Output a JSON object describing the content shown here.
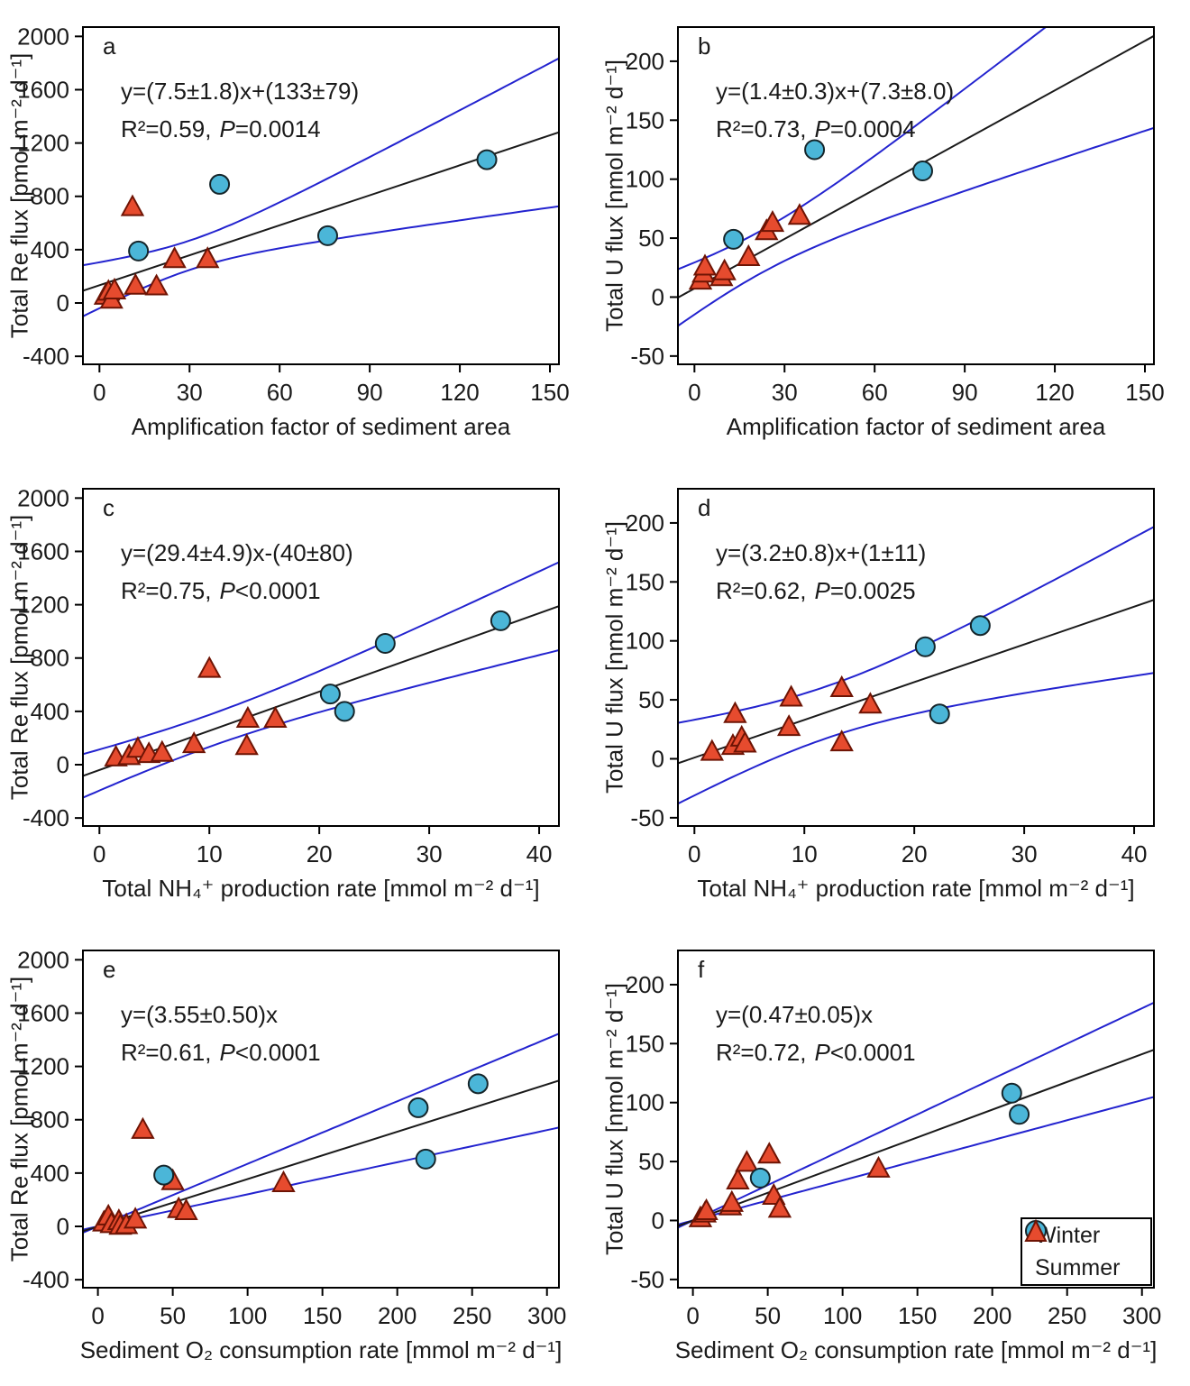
{
  "colors": {
    "winter_fill": "#4bb6d8",
    "winter_stroke": "#15252a",
    "summer_fill": "#e64b2e",
    "summer_stroke": "#6e1404",
    "fit_line": "#1a1a1a",
    "ci_line": "#2323cf",
    "axis": "#000000",
    "background": "#ffffff"
  },
  "legend": {
    "items": [
      {
        "label": "Winter",
        "marker": "circle"
      },
      {
        "label": "Summer",
        "marker": "triangle"
      }
    ],
    "position": "bottom-right of panel f"
  },
  "chart_data": [
    {
      "panel_label": "a",
      "type": "scatter",
      "xlabel": "Amplification factor of sediment area",
      "ylabel": "Total Re flux [pmol m⁻² d⁻¹]",
      "xlim": [
        -5.5,
        153
      ],
      "ylim": [
        -460,
        2070
      ],
      "xticks": [
        0,
        30,
        60,
        90,
        120,
        150
      ],
      "yticks": [
        -400,
        0,
        400,
        800,
        1200,
        1600,
        2000
      ],
      "equation": "y=(7.5±1.8)x+(133±79)",
      "r2_part": "R²=0.59,",
      "p_italic": "P",
      "p_rest": "=0.0014",
      "fit": {
        "slope": 7.5,
        "intercept": 133
      },
      "ci": {
        "x_center": 30,
        "half_width_center": 110,
        "half_width_edge": 555
      },
      "series": [
        {
          "name": "Winter",
          "marker": "circle",
          "points": [
            [
              13,
              390
            ],
            [
              40,
              890
            ],
            [
              76,
              505
            ],
            [
              129,
              1075
            ]
          ]
        },
        {
          "name": "Summer",
          "marker": "triangle",
          "points": [
            [
              2,
              55
            ],
            [
              3,
              85
            ],
            [
              4,
              25
            ],
            [
              5,
              95
            ],
            [
              11,
              720
            ],
            [
              12,
              130
            ],
            [
              19,
              125
            ],
            [
              25,
              330
            ],
            [
              36,
              330
            ]
          ]
        }
      ]
    },
    {
      "panel_label": "b",
      "type": "scatter",
      "xlabel": "Amplification factor of sediment area",
      "ylabel": "Total U flux [nmol m⁻² d⁻¹]",
      "xlim": [
        -5.5,
        153
      ],
      "ylim": [
        -57,
        229
      ],
      "xticks": [
        0,
        30,
        60,
        90,
        120,
        150
      ],
      "yticks": [
        -50,
        0,
        50,
        100,
        150,
        200
      ],
      "equation": "y=(1.4±0.3)x+(7.3±8.0)",
      "r2_part": "R²=0.73,",
      "p_italic": "P",
      "p_rest": "=0.0004",
      "fit": {
        "slope": 1.4,
        "intercept": 7.3
      },
      "ci": {
        "x_center": 22,
        "half_width_center": 18,
        "half_width_edge": 78
      },
      "series": [
        {
          "name": "Winter",
          "marker": "circle",
          "points": [
            [
              13,
              49
            ],
            [
              40,
              125
            ],
            [
              76,
              107
            ]
          ]
        },
        {
          "name": "Summer",
          "marker": "triangle",
          "points": [
            [
              2,
              14
            ],
            [
              3,
              20
            ],
            [
              3.5,
              26
            ],
            [
              9,
              17
            ],
            [
              10,
              22
            ],
            [
              18,
              34
            ],
            [
              24,
              56
            ],
            [
              26,
              63
            ],
            [
              35,
              69
            ]
          ]
        }
      ]
    },
    {
      "panel_label": "c",
      "type": "scatter",
      "xlabel": "Total NH₄⁺ production rate [mmol m⁻² d⁻¹]",
      "ylabel": "Total Re flux [pmol m⁻² d⁻¹]",
      "xlim": [
        -1.5,
        41.8
      ],
      "ylim": [
        -460,
        2070
      ],
      "xticks": [
        0,
        10,
        20,
        30,
        40
      ],
      "yticks": [
        -400,
        0,
        400,
        800,
        1200,
        1600,
        2000
      ],
      "equation": "y=(29.4±4.9)x-(40±80)",
      "r2_part": "R²=0.75,",
      "p_italic": "P",
      "p_rest": "<0.0001",
      "fit": {
        "slope": 29.4,
        "intercept": -40
      },
      "ci": {
        "x_center": 10,
        "half_width_center": 120,
        "half_width_edge": 330
      },
      "series": [
        {
          "name": "Winter",
          "marker": "circle",
          "points": [
            [
              21,
              530
            ],
            [
              22.3,
              400
            ],
            [
              26,
              910
            ],
            [
              36.5,
              1080
            ]
          ]
        },
        {
          "name": "Summer",
          "marker": "triangle",
          "points": [
            [
              1.5,
              55
            ],
            [
              2.7,
              65
            ],
            [
              3.5,
              120
            ],
            [
              4.5,
              80
            ],
            [
              5.7,
              90
            ],
            [
              8.6,
              155
            ],
            [
              10,
              720
            ],
            [
              13.4,
              140
            ],
            [
              13.5,
              345
            ],
            [
              16,
              345
            ]
          ]
        }
      ]
    },
    {
      "panel_label": "d",
      "type": "scatter",
      "xlabel": "Total NH₄⁺ production rate [mmol m⁻² d⁻¹]",
      "ylabel": "Total U flux [nmol m⁻² d⁻¹]",
      "xlim": [
        -1.5,
        41.8
      ],
      "ylim": [
        -57,
        229
      ],
      "xticks": [
        0,
        10,
        20,
        30,
        40
      ],
      "yticks": [
        -50,
        0,
        50,
        100,
        150,
        200
      ],
      "equation": "y=(3.2±0.8)x+(1±11)",
      "r2_part": "R²=0.62,",
      "p_italic": "P",
      "p_rest": "=0.0025",
      "fit": {
        "slope": 3.2,
        "intercept": 1
      },
      "ci": {
        "x_center": 12,
        "half_width_center": 22,
        "half_width_edge": 62
      },
      "series": [
        {
          "name": "Winter",
          "marker": "circle",
          "points": [
            [
              21,
              95
            ],
            [
              26,
              113
            ],
            [
              22.3,
              38
            ]
          ]
        },
        {
          "name": "Summer",
          "marker": "triangle",
          "points": [
            [
              1.6,
              6
            ],
            [
              3.5,
              11
            ],
            [
              3.7,
              38
            ],
            [
              4.3,
              18
            ],
            [
              4.6,
              13
            ],
            [
              8.6,
              27
            ],
            [
              8.8,
              52
            ],
            [
              13.4,
              60
            ],
            [
              13.4,
              14
            ],
            [
              16,
              46
            ]
          ]
        }
      ]
    },
    {
      "panel_label": "e",
      "type": "scatter",
      "xlabel": "Sediment O₂ consumption rate [mmol m⁻² d⁻¹]",
      "ylabel": "Total Re flux [pmol m⁻² d⁻¹]",
      "xlim": [
        -10,
        308
      ],
      "ylim": [
        -460,
        2070
      ],
      "xticks": [
        0,
        50,
        100,
        150,
        200,
        250,
        300
      ],
      "yticks": [
        -400,
        0,
        400,
        800,
        1200,
        1600,
        2000
      ],
      "equation": "y=(3.55±0.50)x",
      "r2_part": "R²=0.61,",
      "p_italic": "P",
      "p_rest": "<0.0001",
      "fit": {
        "slope": 3.55,
        "intercept": 0
      },
      "ci": {
        "x_center": 0,
        "half_width_center": 0,
        "half_width_edge": 352
      },
      "series": [
        {
          "name": "Winter",
          "marker": "circle",
          "points": [
            [
              44,
              385
            ],
            [
              214,
              890
            ],
            [
              219,
              505
            ],
            [
              254,
              1070
            ]
          ]
        },
        {
          "name": "Summer",
          "marker": "triangle",
          "points": [
            [
              4,
              30
            ],
            [
              7,
              75
            ],
            [
              9,
              18
            ],
            [
              14,
              40
            ],
            [
              15,
              5
            ],
            [
              19,
              10
            ],
            [
              25,
              52
            ],
            [
              30,
              725
            ],
            [
              50,
              340
            ],
            [
              54,
              130
            ],
            [
              59,
              115
            ],
            [
              124,
              325
            ]
          ]
        }
      ]
    },
    {
      "panel_label": "f",
      "type": "scatter",
      "xlabel": "Sediment O₂ consumption rate [mmol m⁻² d⁻¹]",
      "ylabel": "Total U flux [nmol m⁻² d⁻¹]",
      "xlim": [
        -10,
        308
      ],
      "ylim": [
        -57,
        229
      ],
      "xticks": [
        0,
        50,
        100,
        150,
        200,
        250,
        300
      ],
      "yticks": [
        -50,
        0,
        50,
        100,
        150,
        200
      ],
      "equation": "y=(0.47±0.05)x",
      "r2_part": "R²=0.72,",
      "p_italic": "P",
      "p_rest": "<0.0001",
      "fit": {
        "slope": 0.47,
        "intercept": 0
      },
      "ci": {
        "x_center": 0,
        "half_width_center": 0,
        "half_width_edge": 40
      },
      "legend": true,
      "series": [
        {
          "name": "Winter",
          "marker": "circle",
          "points": [
            [
              45,
              36
            ],
            [
              213,
              108
            ],
            [
              218,
              90
            ]
          ]
        },
        {
          "name": "Summer",
          "marker": "triangle",
          "points": [
            [
              5,
              2
            ],
            [
              8,
              6
            ],
            [
              9,
              8
            ],
            [
              25,
              12
            ],
            [
              26,
              15
            ],
            [
              30,
              34
            ],
            [
              36,
              49
            ],
            [
              51,
              56
            ],
            [
              54,
              21
            ],
            [
              58,
              10
            ],
            [
              124,
              44
            ]
          ]
        }
      ]
    }
  ]
}
